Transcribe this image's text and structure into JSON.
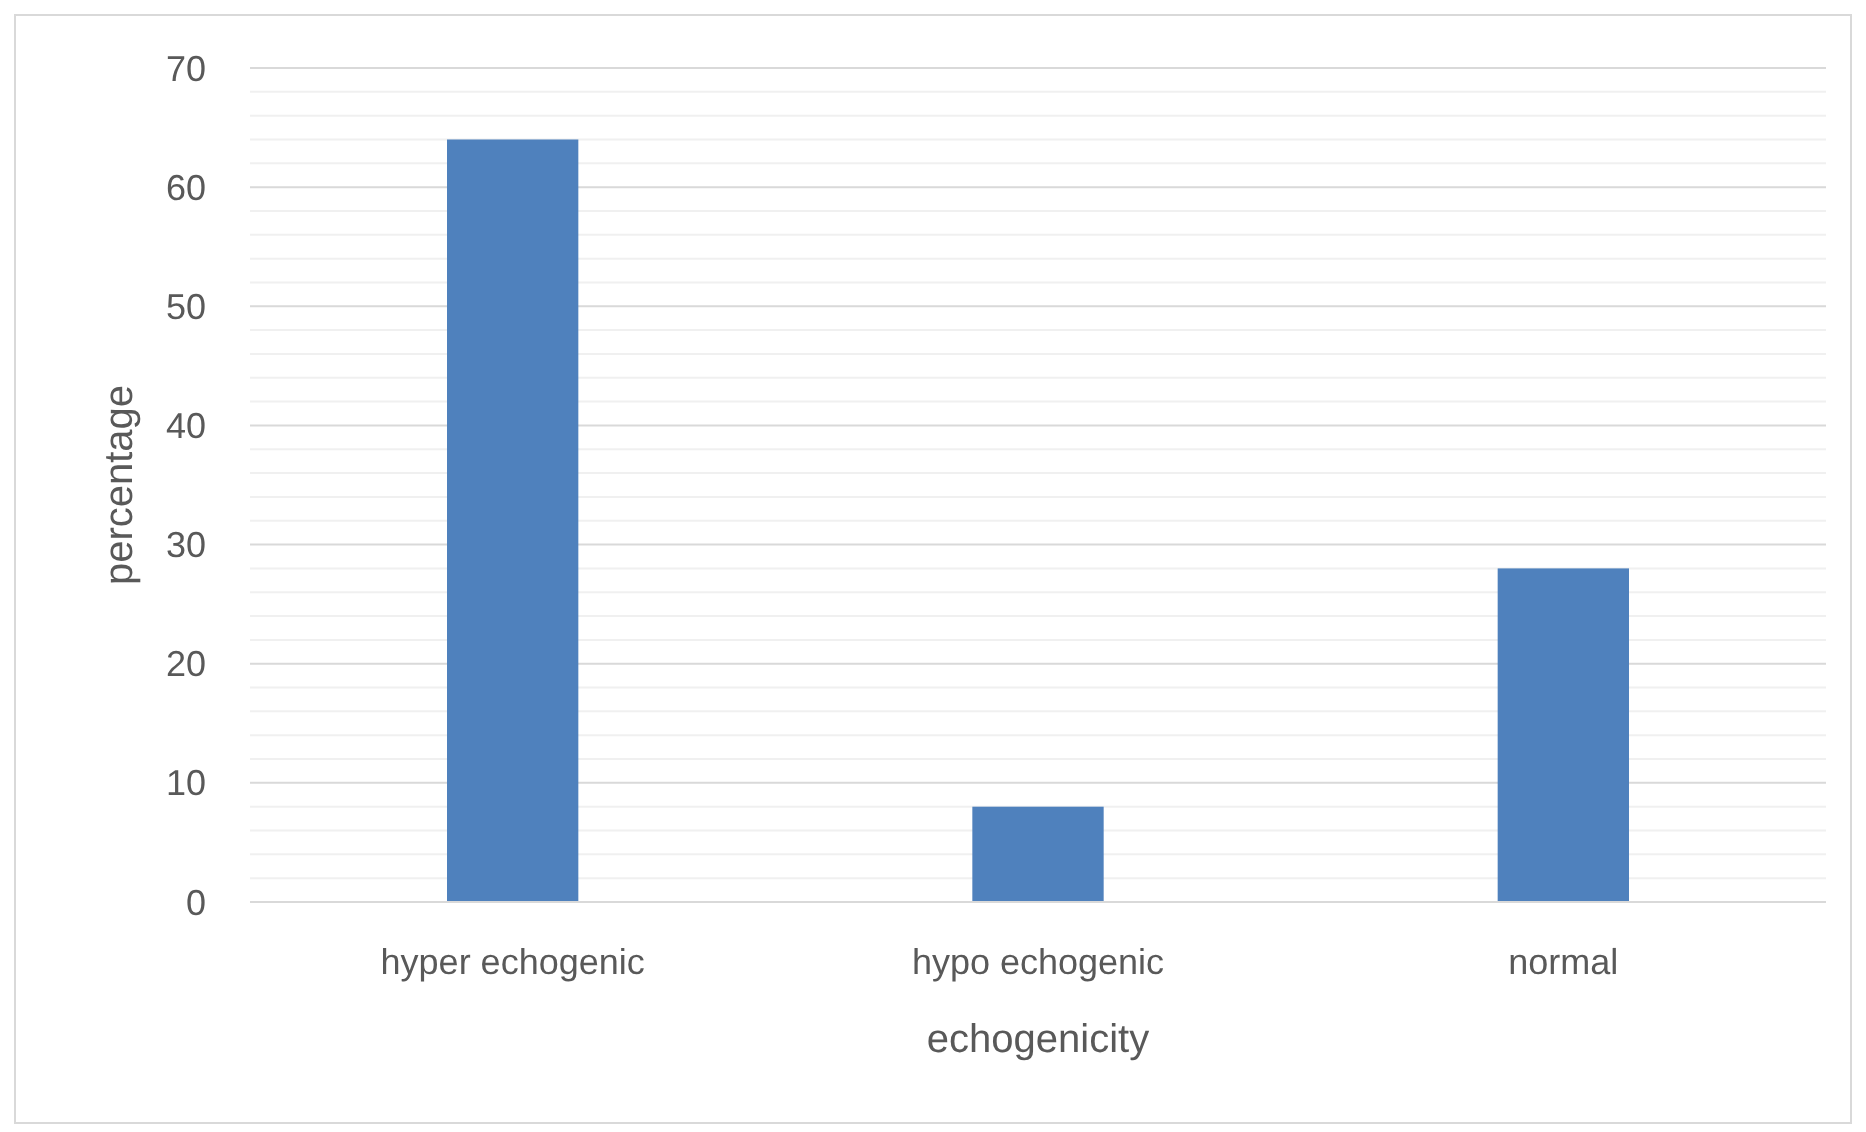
{
  "chart_data": {
    "type": "bar",
    "xlabel": "echogenicity",
    "ylabel": "percentage",
    "categories": [
      "hyper echogenic",
      "hypo echogenic",
      "normal"
    ],
    "values": [
      64,
      8,
      28
    ],
    "color": "#4f81bd",
    "ylim": [
      0,
      70
    ],
    "yticks": [
      0,
      {
        "value": 2,
        "label": null
      },
      {
        "value": 4,
        "label": null
      },
      {
        "value": 6,
        "label": null
      },
      {
        "value": 8,
        "label": null
      },
      10,
      {
        "value": 12,
        "label": null
      },
      {
        "value": 14,
        "label": null
      },
      {
        "value": 16,
        "label": null
      },
      {
        "value": 18,
        "label": null
      },
      20,
      {
        "value": 22,
        "label": null
      },
      {
        "value": 24,
        "label": null
      },
      {
        "value": 26,
        "label": null
      },
      {
        "value": 28,
        "label": null
      },
      30,
      {
        "value": 32,
        "label": null
      },
      {
        "value": 34,
        "label": null
      },
      {
        "value": 36,
        "label": null
      },
      {
        "value": 38,
        "label": null
      },
      40,
      {
        "value": 42,
        "label": null
      },
      {
        "value": 44,
        "label": null
      },
      {
        "value": 46,
        "label": null
      },
      {
        "value": 48,
        "label": null
      },
      50,
      {
        "value": 52,
        "label": null
      },
      {
        "value": 54,
        "label": null
      },
      {
        "value": 56,
        "label": null
      },
      {
        "value": 58,
        "label": null
      },
      60,
      {
        "value": 62,
        "label": null
      },
      {
        "value": 64,
        "label": null
      },
      {
        "value": 66,
        "label": null
      },
      {
        "value": 68,
        "label": null
      },
      70
    ],
    "grid": true
  }
}
